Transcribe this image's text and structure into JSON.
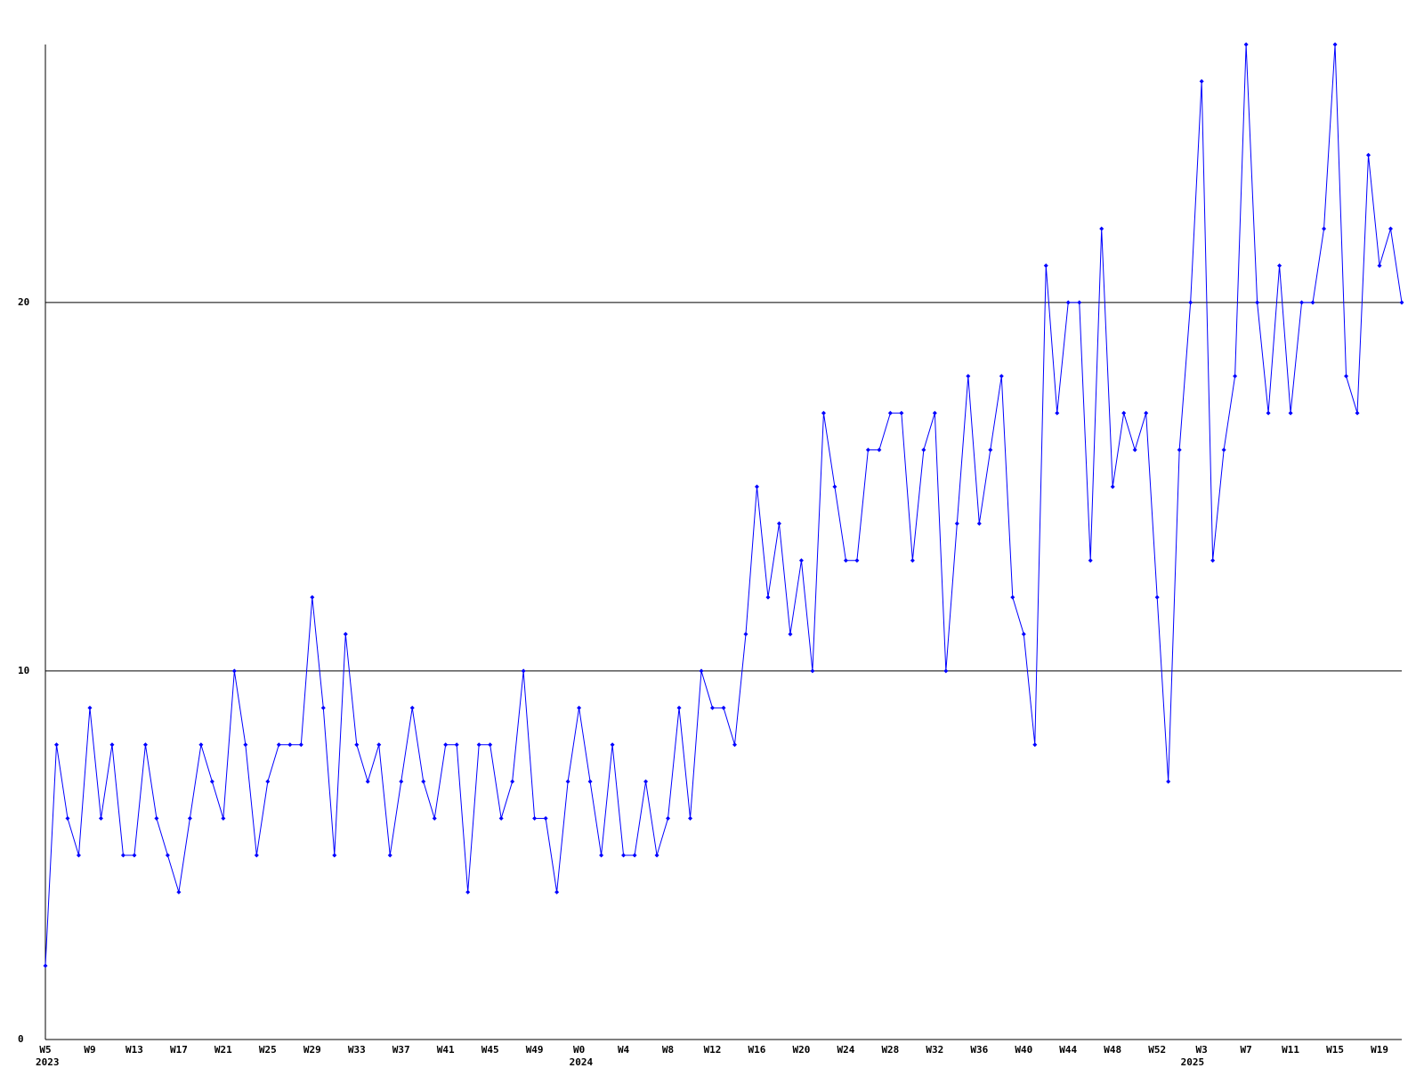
{
  "chart_data": {
    "type": "line",
    "categories": [
      "W5",
      null,
      null,
      null,
      "W9",
      null,
      null,
      null,
      "W13",
      null,
      null,
      null,
      "W17",
      null,
      null,
      null,
      "W21",
      null,
      null,
      null,
      "W25",
      null,
      null,
      null,
      "W29",
      null,
      null,
      null,
      "W33",
      null,
      null,
      null,
      "W37",
      null,
      null,
      null,
      "W41",
      null,
      null,
      null,
      "W45",
      null,
      null,
      null,
      "W49",
      null,
      null,
      null,
      "W0",
      null,
      null,
      null,
      "W4",
      null,
      null,
      null,
      "W8",
      null,
      null,
      null,
      "W12",
      null,
      null,
      null,
      "W16",
      null,
      null,
      null,
      "W20",
      null,
      null,
      null,
      "W24",
      null,
      null,
      null,
      "W28",
      null,
      null,
      null,
      "W32",
      null,
      null,
      null,
      "W36",
      null,
      null,
      null,
      "W40",
      null,
      null,
      null,
      "W44",
      null,
      null,
      null,
      "W48",
      null,
      null,
      null,
      "W52",
      null,
      null,
      null,
      "W3",
      null,
      null,
      null,
      "W7",
      null,
      null,
      null,
      "W11",
      null,
      null,
      null,
      "W15",
      null,
      null,
      null,
      "W19",
      null,
      null
    ],
    "year_labels": [
      "2023",
      null,
      null,
      null,
      null,
      null,
      null,
      null,
      null,
      null,
      null,
      null,
      null,
      null,
      null,
      null,
      null,
      null,
      null,
      null,
      null,
      null,
      null,
      null,
      null,
      null,
      null,
      null,
      null,
      null,
      null,
      null,
      null,
      null,
      null,
      null,
      null,
      null,
      null,
      null,
      null,
      null,
      null,
      null,
      null,
      null,
      null,
      null,
      "2024",
      null,
      null,
      null,
      null,
      null,
      null,
      null,
      null,
      null,
      null,
      null,
      null,
      null,
      null,
      null,
      null,
      null,
      null,
      null,
      null,
      null,
      null,
      null,
      null,
      null,
      null,
      null,
      null,
      null,
      null,
      null,
      null,
      null,
      null,
      null,
      null,
      null,
      null,
      null,
      null,
      null,
      null,
      null,
      null,
      null,
      null,
      null,
      null,
      null,
      null,
      null,
      null,
      null,
      null,
      "2025",
      null,
      null,
      null,
      null,
      null,
      null,
      null,
      null,
      null,
      null,
      null,
      null,
      null,
      null,
      null,
      null,
      null,
      null,
      null,
      null,
      null
    ],
    "values": [
      2,
      8,
      6,
      5,
      9,
      6,
      8,
      5,
      5,
      8,
      6,
      5,
      4,
      6,
      8,
      7,
      6,
      10,
      8,
      5,
      7,
      8,
      8,
      8,
      12,
      9,
      5,
      11,
      8,
      7,
      8,
      5,
      7,
      9,
      7,
      6,
      8,
      8,
      4,
      8,
      8,
      6,
      7,
      10,
      6,
      6,
      4,
      7,
      9,
      7,
      5,
      8,
      5,
      5,
      7,
      5,
      6,
      9,
      6,
      10,
      9,
      9,
      8,
      11,
      15,
      12,
      14,
      11,
      13,
      10,
      17,
      15,
      13,
      13,
      16,
      16,
      17,
      17,
      13,
      16,
      17,
      10,
      14,
      18,
      14,
      16,
      18,
      12,
      11,
      8,
      21,
      17,
      20,
      20,
      13,
      22,
      15,
      17,
      16,
      17,
      12,
      7,
      16,
      20,
      26,
      13,
      16,
      18,
      27,
      20,
      17,
      21,
      17,
      20,
      20,
      22,
      27,
      18,
      17,
      24,
      21,
      22,
      20
    ],
    "color": "#0000ff",
    "ylim": [
      0,
      27
    ],
    "yticks": [
      0,
      10,
      20
    ],
    "grid": true
  }
}
